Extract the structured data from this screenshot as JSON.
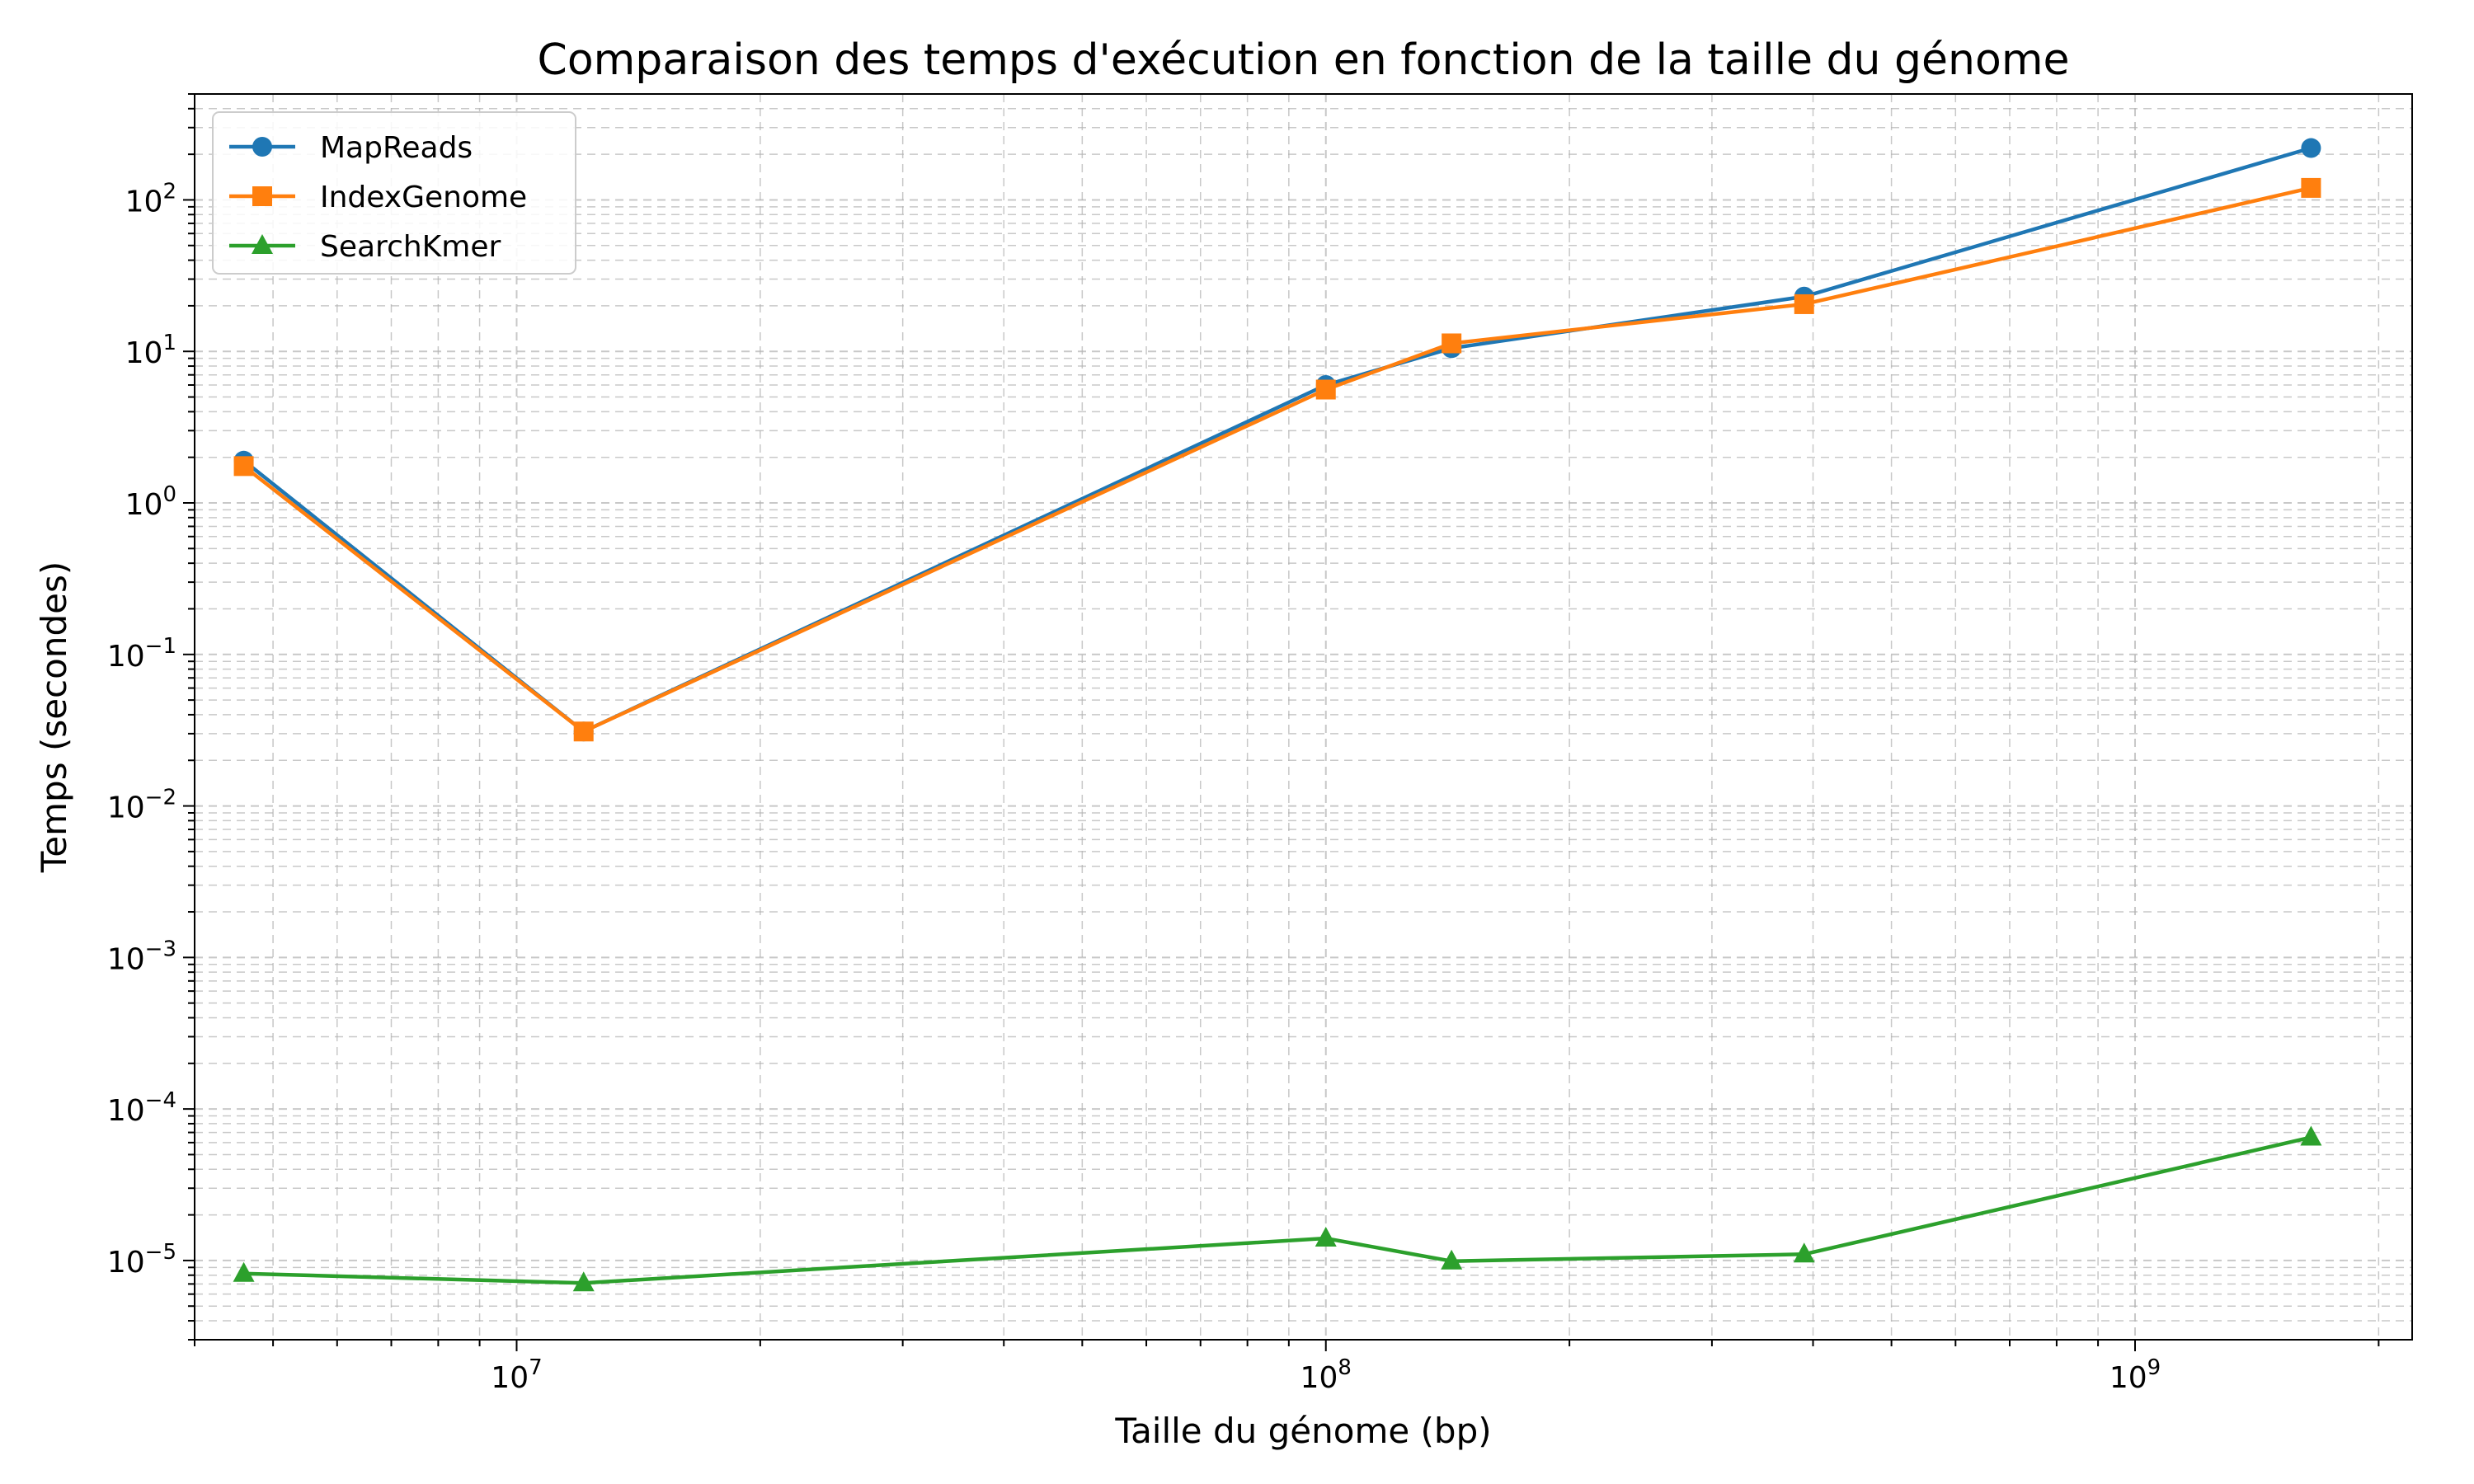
{
  "chart_data": {
    "type": "line",
    "title": "Comparaison des temps d'exécution en fonction de la taille du génome",
    "xlabel": "Taille du génome (bp)",
    "ylabel": "Temps (secondes)",
    "xscale": "log",
    "yscale": "log",
    "xlim": [
      4000000,
      2200000000
    ],
    "ylim": [
      3e-06,
      500
    ],
    "grid": true,
    "legend_position": "upper-left",
    "x_ticks": [
      {
        "value": 10000000,
        "base": "10",
        "exp": "7"
      },
      {
        "value": 100000000,
        "base": "10",
        "exp": "8"
      },
      {
        "value": 1000000000,
        "base": "10",
        "exp": "9"
      }
    ],
    "y_ticks": [
      {
        "value": 1e-05,
        "base": "10",
        "exp": "−5"
      },
      {
        "value": 0.0001,
        "base": "10",
        "exp": "−4"
      },
      {
        "value": 0.001,
        "base": "10",
        "exp": "−3"
      },
      {
        "value": 0.01,
        "base": "10",
        "exp": "−2"
      },
      {
        "value": 0.1,
        "base": "10",
        "exp": "−1"
      },
      {
        "value": 1,
        "base": "10",
        "exp": "0"
      },
      {
        "value": 10,
        "base": "10",
        "exp": "1"
      },
      {
        "value": 100,
        "base": "10",
        "exp": "2"
      }
    ],
    "x": [
      4600000,
      12100000,
      100000000,
      143000000,
      390000000,
      1650000000
    ],
    "series": [
      {
        "name": "MapReads",
        "color": "#1f77b4",
        "marker": "circle",
        "values": [
          1.9,
          0.031,
          6.0,
          10.5,
          23.0,
          220.0
        ]
      },
      {
        "name": "IndexGenome",
        "color": "#ff7f0e",
        "marker": "square",
        "values": [
          1.75,
          0.031,
          5.6,
          11.3,
          20.5,
          120.0
        ]
      },
      {
        "name": "SearchKmer",
        "color": "#2ca02c",
        "marker": "triangle",
        "values": [
          8.2e-06,
          7.1e-06,
          1.4e-05,
          9.9e-06,
          1.1e-05,
          6.5e-05
        ]
      }
    ]
  }
}
